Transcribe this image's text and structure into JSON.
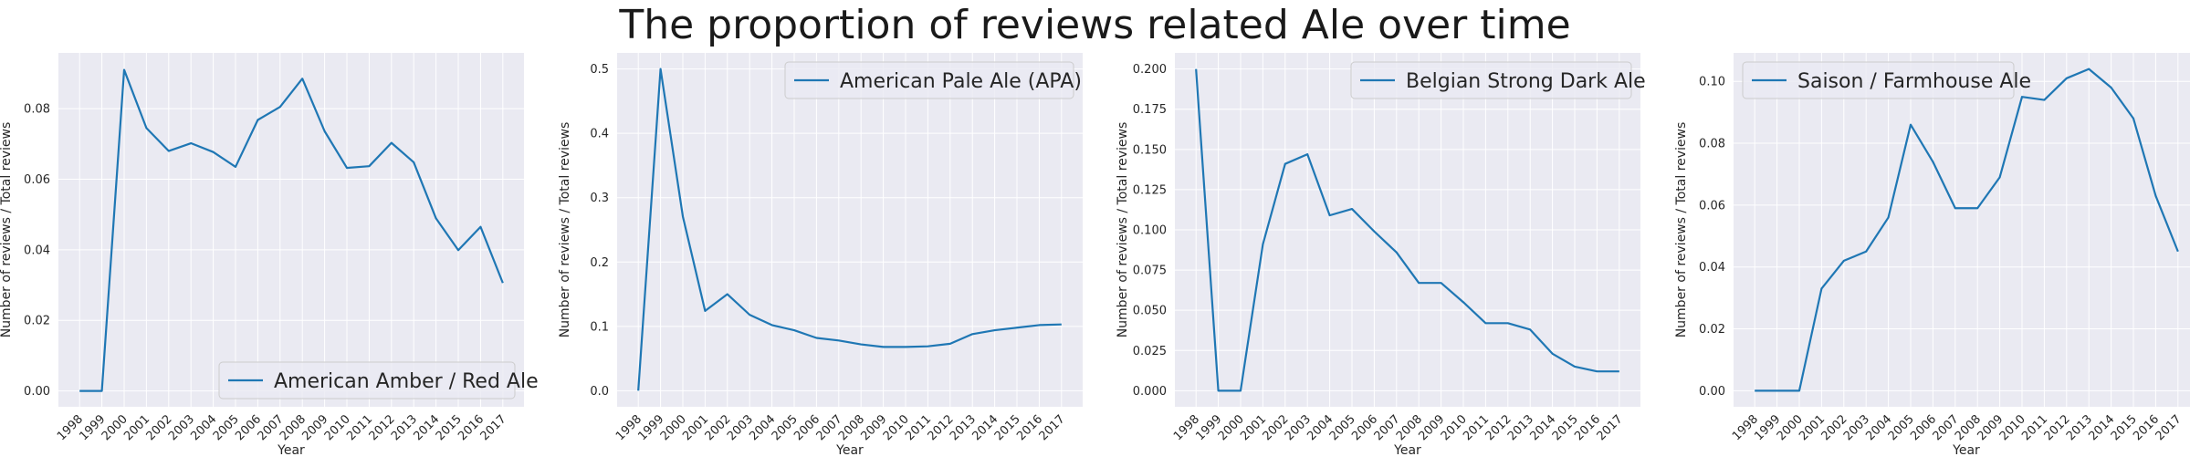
{
  "suptitle": "The proportion of reviews related Ale over time",
  "chart_data": [
    {
      "type": "line",
      "xlabel": "Year",
      "ylabel": "Number of reviews / Total reviews",
      "x": [
        1998,
        1999,
        2000,
        2001,
        2002,
        2003,
        2004,
        2005,
        2006,
        2007,
        2008,
        2009,
        2010,
        2011,
        2012,
        2013,
        2014,
        2015,
        2016,
        2017
      ],
      "xtick_labels": [
        "1998",
        "1999",
        "2000",
        "2001",
        "2002",
        "2003",
        "2004",
        "2005",
        "2006",
        "2007",
        "2008",
        "2009",
        "2010",
        "2011",
        "2012",
        "2013",
        "2014",
        "2015",
        "2016",
        "2017"
      ],
      "ylim": [
        -0.0045,
        0.0958
      ],
      "yticks": [
        0.0,
        0.02,
        0.04,
        0.06,
        0.08
      ],
      "ytick_labels": [
        "0.00",
        "0.02",
        "0.04",
        "0.06",
        "0.08"
      ],
      "legend_loc": "lower-right",
      "grid": true,
      "series": [
        {
          "name": "American Amber / Red Ale",
          "color": "#1f77b4",
          "values": [
            0.0,
            0.0,
            0.091,
            0.0745,
            0.068,
            0.0702,
            0.0677,
            0.0635,
            0.0768,
            0.0805,
            0.0885,
            0.0736,
            0.0632,
            0.0637,
            0.0703,
            0.0648,
            0.0489,
            0.0399,
            0.0465,
            0.0306
          ]
        }
      ]
    },
    {
      "type": "line",
      "xlabel": "Year",
      "ylabel": "Number of reviews / Total reviews",
      "x": [
        1998,
        1999,
        2000,
        2001,
        2002,
        2003,
        2004,
        2005,
        2006,
        2007,
        2008,
        2009,
        2010,
        2011,
        2012,
        2013,
        2014,
        2015,
        2016,
        2017
      ],
      "xtick_labels": [
        "1998",
        "1999",
        "2000",
        "2001",
        "2002",
        "2003",
        "2004",
        "2005",
        "2006",
        "2007",
        "2008",
        "2009",
        "2010",
        "2011",
        "2012",
        "2013",
        "2014",
        "2015",
        "2016",
        "2017"
      ],
      "ylim": [
        -0.025,
        0.525
      ],
      "yticks": [
        0.0,
        0.1,
        0.2,
        0.3,
        0.4,
        0.5
      ],
      "ytick_labels": [
        "0.0",
        "0.1",
        "0.2",
        "0.3",
        "0.4",
        "0.5"
      ],
      "legend_loc": "upper-right",
      "grid": true,
      "series": [
        {
          "name": "American Pale Ale (APA)",
          "color": "#1f77b4",
          "values": [
            0.0,
            0.5,
            0.271,
            0.124,
            0.15,
            0.118,
            0.102,
            0.094,
            0.082,
            0.078,
            0.072,
            0.068,
            0.068,
            0.069,
            0.073,
            0.088,
            0.094,
            0.098,
            0.102,
            0.103
          ]
        }
      ]
    },
    {
      "type": "line",
      "xlabel": "Year",
      "ylabel": "Number of reviews / Total reviews",
      "x": [
        1998,
        1999,
        2000,
        2001,
        2002,
        2003,
        2004,
        2005,
        2006,
        2007,
        2008,
        2009,
        2010,
        2011,
        2012,
        2013,
        2014,
        2015,
        2016,
        2017
      ],
      "xtick_labels": [
        "1998",
        "1999",
        "2000",
        "2001",
        "2002",
        "2003",
        "2004",
        "2005",
        "2006",
        "2007",
        "2008",
        "2009",
        "2010",
        "2011",
        "2012",
        "2013",
        "2014",
        "2015",
        "2016",
        "2017"
      ],
      "ylim": [
        -0.01,
        0.21
      ],
      "yticks": [
        0.0,
        0.025,
        0.05,
        0.075,
        0.1,
        0.125,
        0.15,
        0.175,
        0.2
      ],
      "ytick_labels": [
        "0.000",
        "0.025",
        "0.050",
        "0.075",
        "0.100",
        "0.125",
        "0.150",
        "0.175",
        "0.200"
      ],
      "legend_loc": "upper-right",
      "grid": true,
      "series": [
        {
          "name": "Belgian Strong Dark Ale",
          "color": "#1f77b4",
          "values": [
            0.2,
            0.0,
            0.0,
            0.091,
            0.141,
            0.147,
            0.109,
            0.113,
            0.099,
            0.086,
            0.067,
            0.067,
            0.055,
            0.042,
            0.042,
            0.038,
            0.023,
            0.015,
            0.012,
            0.012
          ]
        }
      ]
    },
    {
      "type": "line",
      "xlabel": "Year",
      "ylabel": "Number of reviews / Total reviews",
      "x": [
        1998,
        1999,
        2000,
        2001,
        2002,
        2003,
        2004,
        2005,
        2006,
        2007,
        2008,
        2009,
        2010,
        2011,
        2012,
        2013,
        2014,
        2015,
        2016,
        2017
      ],
      "xtick_labels": [
        "1998",
        "1999",
        "2000",
        "2001",
        "2002",
        "2003",
        "2004",
        "2005",
        "2006",
        "2007",
        "2008",
        "2009",
        "2010",
        "2011",
        "2012",
        "2013",
        "2014",
        "2015",
        "2016",
        "2017"
      ],
      "ylim": [
        -0.0052,
        0.1092
      ],
      "yticks": [
        0.0,
        0.02,
        0.04,
        0.06,
        0.08,
        0.1
      ],
      "ytick_labels": [
        "0.00",
        "0.02",
        "0.04",
        "0.06",
        "0.08",
        "0.10"
      ],
      "legend_loc": "upper-left",
      "grid": true,
      "series": [
        {
          "name": "Saison / Farmhouse Ale",
          "color": "#1f77b4",
          "values": [
            0.0,
            0.0,
            0.0,
            0.033,
            0.042,
            0.045,
            0.056,
            0.086,
            0.074,
            0.059,
            0.059,
            0.069,
            0.095,
            0.094,
            0.101,
            0.104,
            0.098,
            0.088,
            0.063,
            0.045
          ]
        }
      ]
    }
  ]
}
